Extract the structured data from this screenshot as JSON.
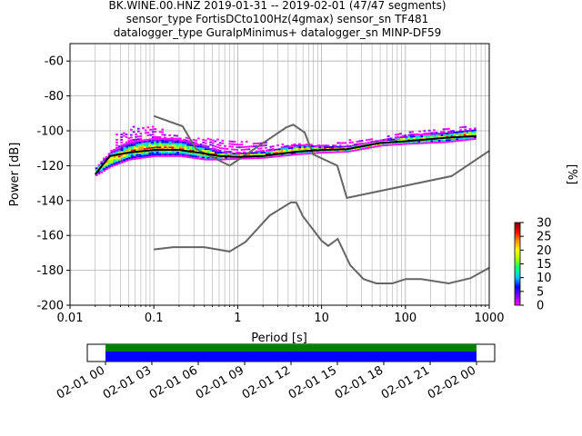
{
  "chart_data": {
    "type": "heatmap",
    "title_lines": [
      "BK.WINE.00.HNZ   2019-01-31 -- 2019-02-01  (47/47 segments)",
      "sensor_type FortisDCto100Hz(4gmax) sensor_sn TF481",
      "datalogger_type GuralpMinimus+ datalogger_sn MINP-DF59"
    ],
    "xlabel": "Period [s]",
    "ylabel": "Power [dB]",
    "xscale": "log",
    "xlim": [
      0.01,
      1000
    ],
    "ylim": [
      -200,
      -50
    ],
    "x_ticks": [
      0.01,
      0.1,
      1,
      10,
      100,
      1000
    ],
    "x_tick_labels": [
      "0.01",
      "0.1",
      "1",
      "10",
      "100",
      "1000"
    ],
    "y_ticks": [
      -200,
      -180,
      -160,
      -140,
      -120,
      -100,
      -80,
      -60
    ],
    "y_tick_labels": [
      "-200",
      "-180",
      "-160",
      "-140",
      "-120",
      "-100",
      "-80",
      "-60"
    ],
    "grid": true,
    "colorbar": {
      "label": "[%]",
      "range": [
        0,
        30
      ],
      "ticks": [
        0,
        5,
        10,
        15,
        20,
        25,
        30
      ],
      "tick_labels": [
        "0",
        "5",
        "10",
        "15",
        "20",
        "25",
        "30"
      ],
      "colormap": [
        "#ff00ff",
        "#8000ff",
        "#0000ff",
        "#00c0ff",
        "#00ff80",
        "#a0ff00",
        "#ffff00",
        "#ff9000",
        "#ff0000",
        "#800000"
      ]
    },
    "noise_models": [
      {
        "points": [
          [
            0.1,
            -91.5
          ],
          [
            0.22,
            -97.4
          ],
          [
            0.32,
            -110.5
          ],
          [
            0.8,
            -120
          ],
          [
            3.8,
            -98
          ],
          [
            4.6,
            -96.5
          ],
          [
            6.3,
            -101
          ],
          [
            7.9,
            -113.5
          ],
          [
            15.4,
            -120
          ],
          [
            20,
            -138.5
          ],
          [
            354.8,
            -126
          ],
          [
            1000,
            -111.5
          ]
        ]
      },
      {
        "points": [
          [
            0.1,
            -168
          ],
          [
            0.17,
            -166.7
          ],
          [
            0.4,
            -166.7
          ],
          [
            0.8,
            -169.2
          ],
          [
            1.24,
            -163.7
          ],
          [
            2.4,
            -148.6
          ],
          [
            4.3,
            -141.1
          ],
          [
            5,
            -141.1
          ],
          [
            6,
            -149
          ],
          [
            10,
            -163
          ],
          [
            12,
            -166
          ],
          [
            15.6,
            -162
          ],
          [
            21.9,
            -177
          ],
          [
            31.6,
            -185
          ],
          [
            45,
            -187.5
          ],
          [
            70,
            -187.5
          ],
          [
            101,
            -185
          ],
          [
            154,
            -185
          ],
          [
            328,
            -187.5
          ],
          [
            600,
            -184.5
          ],
          [
            1000,
            -178.5
          ]
        ]
      }
    ],
    "mode_curve": [
      [
        0.02,
        -125
      ],
      [
        0.025,
        -119
      ],
      [
        0.03,
        -114.5
      ],
      [
        0.05,
        -112.5
      ],
      [
        0.1,
        -111
      ],
      [
        0.2,
        -111
      ],
      [
        0.4,
        -113
      ],
      [
        0.6,
        -114.5
      ],
      [
        1,
        -115
      ],
      [
        2,
        -114.5
      ],
      [
        5,
        -112
      ],
      [
        10,
        -111
      ],
      [
        20,
        -110.5
      ],
      [
        50,
        -107
      ],
      [
        100,
        -106
      ],
      [
        300,
        -104
      ],
      [
        700,
        -103
      ]
    ],
    "psd_band_top": [
      [
        0.02,
        -121
      ],
      [
        0.03,
        -112
      ],
      [
        0.05,
        -106
      ],
      [
        0.1,
        -104
      ],
      [
        0.2,
        -105
      ],
      [
        0.4,
        -109
      ],
      [
        0.6,
        -112
      ],
      [
        1,
        -113
      ],
      [
        2,
        -112
      ],
      [
        5,
        -108
      ],
      [
        10,
        -109
      ],
      [
        20,
        -109
      ],
      [
        50,
        -106
      ],
      [
        100,
        -103
      ],
      [
        300,
        -101
      ],
      [
        700,
        -99
      ]
    ],
    "psd_band_bottom": [
      [
        0.02,
        -126
      ],
      [
        0.03,
        -121
      ],
      [
        0.05,
        -117
      ],
      [
        0.1,
        -115
      ],
      [
        0.2,
        -115
      ],
      [
        0.4,
        -117
      ],
      [
        0.6,
        -117
      ],
      [
        1,
        -116.5
      ],
      [
        2,
        -116
      ],
      [
        5,
        -114
      ],
      [
        10,
        -113
      ],
      [
        20,
        -112.5
      ],
      [
        50,
        -109
      ],
      [
        100,
        -108
      ],
      [
        300,
        -107
      ],
      [
        700,
        -105
      ]
    ],
    "psd_outliers_top": [
      [
        0.04,
        -102
      ],
      [
        0.06,
        -97
      ],
      [
        0.1,
        -98
      ],
      [
        0.2,
        -104
      ],
      [
        4,
        -108
      ],
      [
        10,
        -108
      ],
      [
        300,
        -98
      ]
    ],
    "availability": {
      "x_ticks": [
        "2019-02-01T00:00",
        "2019-02-01T03:00",
        "2019-02-01T06:00",
        "2019-02-01T09:00",
        "2019-02-01T12:00",
        "2019-02-01T15:00",
        "2019-02-01T18:00",
        "2019-02-01T21:00",
        "2019-02-02T00:00"
      ],
      "x_tick_labels": [
        "02-01 00",
        "02-01 03",
        "02-01 06",
        "02-01 09",
        "02-01 12",
        "02-01 15",
        "02-01 18",
        "02-01 21",
        "02-02 00"
      ],
      "coverage_colors": [
        "#008000",
        "#0000ff"
      ]
    }
  }
}
